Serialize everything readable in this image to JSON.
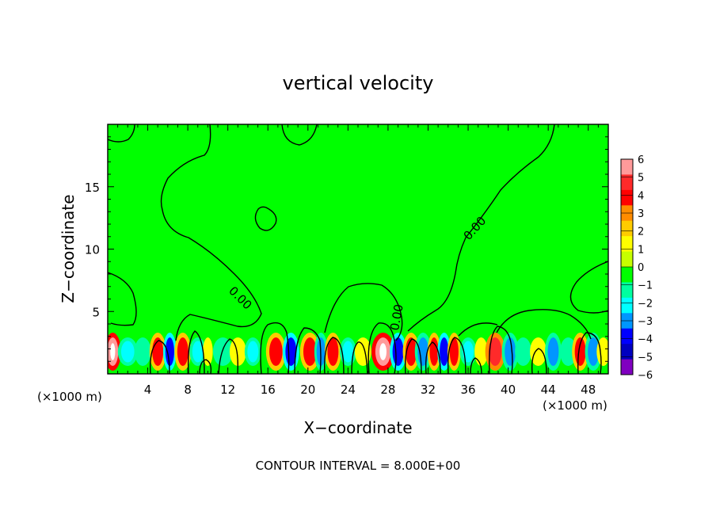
{
  "chart_data": {
    "type": "heatmap",
    "title": "vertical velocity",
    "xlabel": "X−coordinate",
    "ylabel": "Z−coordinate",
    "x_unit_left": "(×1000 m)",
    "x_unit_right": "(×1000 m)",
    "xlim": [
      0,
      50
    ],
    "ylim": [
      0,
      20
    ],
    "x_ticks": [
      4,
      8,
      12,
      16,
      20,
      24,
      28,
      32,
      36,
      40,
      44,
      48
    ],
    "y_ticks": [
      5,
      10,
      15
    ],
    "colorbar": {
      "levels": [
        6,
        5,
        4,
        3,
        2,
        1,
        0,
        -1,
        -2,
        -3,
        -4,
        -5,
        -6
      ],
      "labels": [
        "6",
        "5",
        "4",
        "3",
        "2",
        "1",
        "0",
        "−1",
        "−2",
        "−3",
        "−4",
        "−5",
        "−6"
      ],
      "colors": [
        "#ff9a9a",
        "#ff2a2a",
        "#ff0000",
        "#ff8c00",
        "#ffcc00",
        "#ffff00",
        "#c6ff00",
        "#00ff00",
        "#00ffa0",
        "#00ffff",
        "#0096ff",
        "#0000ff",
        "#0000c0",
        "#8000c0"
      ]
    },
    "contour_labels": [
      "0.00",
      "0.00",
      "0.00"
    ],
    "footer": "CONTOUR INTERVAL = 8.000E+00",
    "cells": [
      {
        "x": 0.5,
        "w": 1.0,
        "v": 6
      },
      {
        "x": 2.0,
        "w": 1.2,
        "v": -2
      },
      {
        "x": 3.5,
        "w": 1.0,
        "v": -1
      },
      {
        "x": 5.0,
        "w": 1.0,
        "v": 4
      },
      {
        "x": 6.2,
        "w": 0.8,
        "v": -4
      },
      {
        "x": 7.5,
        "w": 1.0,
        "v": 4
      },
      {
        "x": 9.0,
        "w": 1.0,
        "v": -2
      },
      {
        "x": 10.0,
        "w": 0.6,
        "v": 1
      },
      {
        "x": 11.5,
        "w": 1.2,
        "v": -1
      },
      {
        "x": 13.0,
        "w": 1.0,
        "v": 1
      },
      {
        "x": 14.5,
        "w": 1.0,
        "v": -2
      },
      {
        "x": 16.8,
        "w": 1.2,
        "v": 4
      },
      {
        "x": 18.3,
        "w": 1.0,
        "v": -4
      },
      {
        "x": 20.2,
        "w": 1.2,
        "v": 4
      },
      {
        "x": 21.3,
        "w": 0.8,
        "v": -3
      },
      {
        "x": 22.5,
        "w": 1.0,
        "v": 4
      },
      {
        "x": 24.0,
        "w": 1.0,
        "v": -2
      },
      {
        "x": 25.5,
        "w": 1.0,
        "v": 1
      },
      {
        "x": 27.5,
        "w": 1.4,
        "v": 6
      },
      {
        "x": 29.0,
        "w": 1.0,
        "v": -4
      },
      {
        "x": 30.3,
        "w": 1.0,
        "v": 4
      },
      {
        "x": 31.5,
        "w": 1.0,
        "v": -3
      },
      {
        "x": 32.6,
        "w": 0.8,
        "v": 4
      },
      {
        "x": 33.6,
        "w": 0.8,
        "v": -4
      },
      {
        "x": 34.6,
        "w": 0.8,
        "v": 4
      },
      {
        "x": 36.0,
        "w": 1.0,
        "v": -2
      },
      {
        "x": 37.3,
        "w": 0.8,
        "v": 1
      },
      {
        "x": 38.7,
        "w": 1.2,
        "v": 5
      },
      {
        "x": 40.2,
        "w": 1.0,
        "v": -3
      },
      {
        "x": 41.5,
        "w": 1.0,
        "v": -1
      },
      {
        "x": 43.0,
        "w": 1.0,
        "v": 1
      },
      {
        "x": 44.5,
        "w": 1.0,
        "v": -3
      },
      {
        "x": 46.0,
        "w": 1.0,
        "v": -1
      },
      {
        "x": 47.2,
        "w": 1.0,
        "v": 4
      },
      {
        "x": 48.5,
        "w": 1.0,
        "v": -3
      },
      {
        "x": 49.5,
        "w": 0.8,
        "v": 1
      }
    ]
  }
}
